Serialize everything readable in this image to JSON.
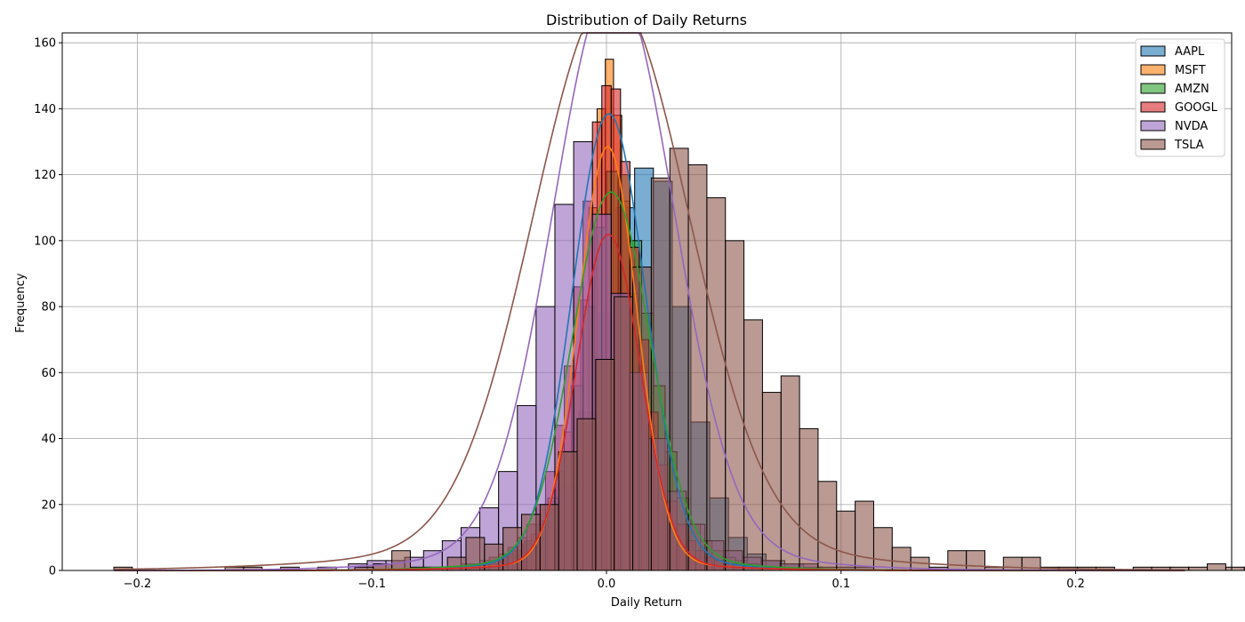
{
  "chart_data": {
    "type": "histogram",
    "title": "Distribution of Daily Returns",
    "xlabel": "Daily Return",
    "ylabel": "Frequency",
    "xlim": [
      -0.232,
      0.2665
    ],
    "ylim": [
      0,
      163
    ],
    "xticks": [
      -0.2,
      -0.1,
      0.0,
      0.1,
      0.2
    ],
    "xtick_labels": [
      "−0.2",
      "−0.1",
      "0.0",
      "0.1",
      "0.2"
    ],
    "yticks": [
      0,
      20,
      40,
      60,
      80,
      100,
      120,
      140,
      160
    ],
    "ytick_labels": [
      "0",
      "20",
      "40",
      "60",
      "80",
      "100",
      "120",
      "140",
      "160"
    ],
    "grid": true,
    "legend_position": "top-right",
    "kde_overlay": true,
    "series": [
      {
        "name": "AAPL",
        "color": "#1f77b4",
        "bin_start": -0.06,
        "bin_width": 0.008,
        "counts": [
          1,
          2,
          5,
          8,
          13,
          26,
          48,
          78,
          110,
          122,
          118,
          80,
          45,
          22,
          10,
          5,
          3,
          2,
          1
        ],
        "kde_mu": 0.001,
        "kde_sigma": 0.0155,
        "kde_n": 700,
        "kde_tail_w": 0.06,
        "kde_tail_sigma": 0.045
      },
      {
        "name": "MSFT",
        "color": "#ff7f0e",
        "bin_start": -0.06,
        "bin_width": 0.0035,
        "counts": [
          1,
          1,
          2,
          2,
          3,
          4,
          6,
          8,
          11,
          15,
          21,
          30,
          42,
          60,
          82,
          110,
          140,
          155,
          138,
          112,
          84,
          62,
          44,
          30,
          20,
          14,
          9,
          6,
          4,
          3,
          2,
          2,
          1,
          1
        ],
        "kde_mu": 0.0005,
        "kde_sigma": 0.0125,
        "kde_n": 1200,
        "kde_tail_w": 0.06,
        "kde_tail_sigma": 0.04
      },
      {
        "name": "AMZN",
        "color": "#2ca02c",
        "bin_start": -0.06,
        "bin_width": 0.005,
        "counts": [
          1,
          2,
          3,
          4,
          6,
          9,
          14,
          22,
          36,
          56,
          80,
          104,
          121,
          120,
          100,
          78,
          56,
          36,
          22,
          14,
          9,
          6,
          4,
          3,
          2,
          1
        ],
        "kde_mu": 0.002,
        "kde_sigma": 0.0165,
        "kde_n": 1000,
        "kde_tail_w": 0.08,
        "kde_tail_sigma": 0.045
      },
      {
        "name": "GOOGL",
        "color": "#d62728",
        "bin_start": -0.07,
        "bin_width": 0.004,
        "counts": [
          1,
          1,
          2,
          2,
          3,
          4,
          5,
          7,
          10,
          14,
          20,
          30,
          44,
          62,
          86,
          112,
          136,
          147,
          146,
          124,
          98,
          70,
          48,
          32,
          21,
          14,
          9,
          6,
          4,
          3,
          2,
          2,
          1,
          1
        ],
        "kde_mu": 0.0008,
        "kde_sigma": 0.0135,
        "kde_n": 900,
        "kde_tail_w": 0.06,
        "kde_tail_sigma": 0.045
      },
      {
        "name": "NVDA",
        "color": "#9467bd",
        "bin_start": -0.11,
        "bin_width": 0.008,
        "counts": [
          2,
          3,
          3,
          4,
          6,
          9,
          13,
          19,
          30,
          50,
          80,
          111,
          130,
          108,
          84,
          60,
          40,
          24,
          14,
          9,
          6,
          4,
          3,
          2,
          2,
          1,
          1,
          1
        ],
        "kde_mu": 0.003,
        "kde_sigma": 0.0255,
        "kde_n": 1500,
        "kde_tail_w": 0.08,
        "kde_tail_sigma": 0.06
      },
      {
        "name": "TSLA",
        "color": "#8c564b",
        "bin_start": -0.21,
        "bin_width": 0.0079,
        "counts": [
          1,
          0,
          0,
          0,
          0,
          0,
          1,
          1,
          0,
          1,
          0,
          1,
          0,
          1,
          2,
          6,
          1,
          1,
          4,
          10,
          8,
          13,
          17,
          20,
          36,
          46,
          64,
          83,
          92,
          119,
          128,
          123,
          113,
          100,
          76,
          54,
          59,
          43,
          27,
          18,
          21,
          13,
          7,
          4,
          1,
          6,
          6,
          1,
          4,
          4,
          1,
          1,
          1,
          1,
          0,
          1,
          1,
          1,
          1,
          2,
          1,
          1
        ],
        "kde_mu": 0.002,
        "kde_sigma": 0.033,
        "kde_n": 1950,
        "kde_tail_w": 0.1,
        "kde_tail_sigma": 0.085
      }
    ]
  }
}
